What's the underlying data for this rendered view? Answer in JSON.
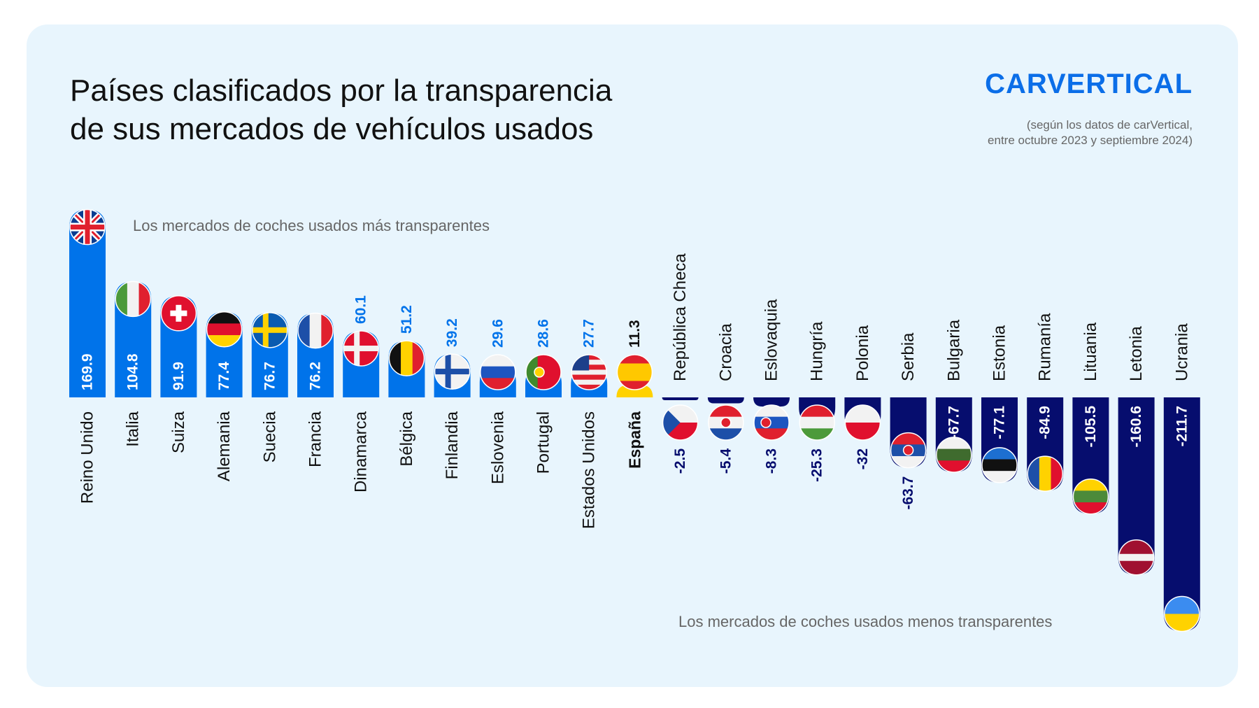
{
  "title_line1": "Países clasificados por la transparencia",
  "title_line2": "de sus mercados de vehículos usados",
  "logo": "CARVERTICAL",
  "source_line1": "(según los datos de carVertical,",
  "source_line2": "entre octubre 2023 y septiembre 2024)",
  "colors": {
    "positive": "#0073ea",
    "negative": "#060d6e",
    "highlight": "#ffd200",
    "background": "#e8f5fd"
  },
  "chart_data": {
    "type": "bar",
    "title": "Países clasificados por la transparencia de sus mercados de vehículos usados",
    "annotations": [
      "Los mercados de coches usados más transparentes",
      "Los mercados de coches usados menos transparentes"
    ],
    "highlight": "España",
    "grid": false,
    "categories": [
      "Reino Unido",
      "Italia",
      "Suiza",
      "Alemania",
      "Suecia",
      "Francia",
      "Dinamarca",
      "Bélgica",
      "Finlandia",
      "Eslovenia",
      "Portugal",
      "Estados Unidos",
      "España",
      "República Checa",
      "Croacia",
      "Eslovaquia",
      "Hungría",
      "Polonia",
      "Serbia",
      "Bulgaria",
      "Estonia",
      "Rumanía",
      "Lituania",
      "Letonia",
      "Ucrania"
    ],
    "values": [
      169.9,
      104.8,
      91.9,
      77.4,
      76.7,
      76.2,
      60.1,
      51.2,
      39.2,
      29.6,
      28.6,
      27.7,
      11.3,
      -2.5,
      -5.4,
      -8.3,
      -25.3,
      -32,
      -63.7,
      -67.7,
      -77.1,
      -84.9,
      -105.5,
      -160.6,
      -211.7
    ],
    "labels": [
      "169.9",
      "104.8",
      "91.9",
      "77.4",
      "76.7",
      "76.2",
      "60.1",
      "51.2",
      "39.2",
      "29.6",
      "28.6",
      "27.7",
      "11.3",
      "-2.5",
      "-5.4",
      "-8.3",
      "-25.3",
      "-32",
      "-63.7",
      "-67.7",
      "-77.1",
      "-84.9",
      "-105.5",
      "-160.6",
      "-211.7"
    ],
    "flags": [
      "flag-uk-icon",
      "flag-italy-icon",
      "flag-switzerland-icon",
      "flag-germany-icon",
      "flag-sweden-icon",
      "flag-france-icon",
      "flag-denmark-icon",
      "flag-belgium-icon",
      "flag-finland-icon",
      "flag-slovenia-icon",
      "flag-portugal-icon",
      "flag-usa-icon",
      "flag-spain-icon",
      "flag-czechia-icon",
      "flag-croatia-icon",
      "flag-slovakia-icon",
      "flag-hungary-icon",
      "flag-poland-icon",
      "flag-serbia-icon",
      "flag-bulgaria-icon",
      "flag-estonia-icon",
      "flag-romania-icon",
      "flag-lithuania-icon",
      "flag-latvia-icon",
      "flag-ukraine-icon"
    ]
  }
}
